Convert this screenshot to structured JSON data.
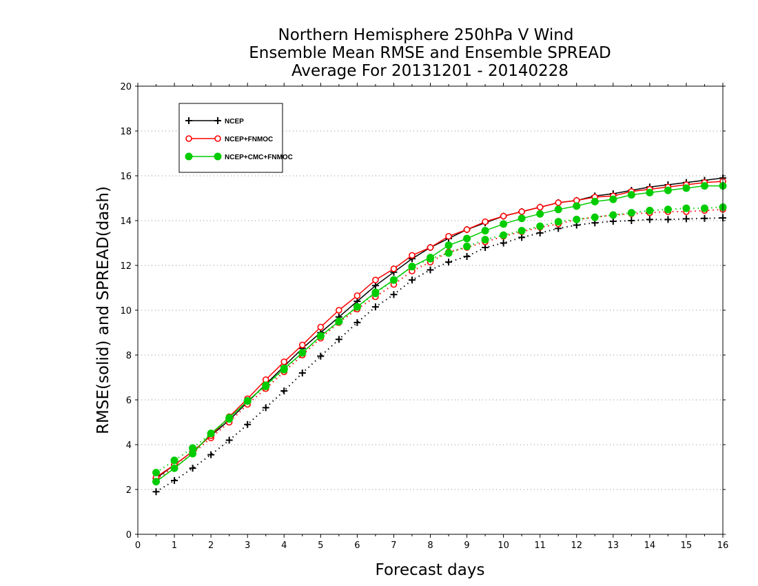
{
  "chart_data": {
    "type": "line",
    "title": [
      "Northern Hemisphere 250hPa V Wind",
      "Ensemble Mean RMSE and Ensemble SPREAD",
      "Average For 20131201 - 20140228"
    ],
    "xlabel": "Forecast days",
    "ylabel": "RMSE(solid) and SPREAD(dash)",
    "xlim": [
      0,
      16
    ],
    "ylim": [
      0,
      20
    ],
    "xticks": [
      "0",
      "1",
      "2",
      "3",
      "4",
      "5",
      "6",
      "7",
      "8",
      "9",
      "10",
      "11",
      "12",
      "13",
      "14",
      "15",
      "16"
    ],
    "yticks": [
      "0",
      "2",
      "4",
      "6",
      "8",
      "10",
      "12",
      "14",
      "16",
      "18",
      "20"
    ],
    "grid": true,
    "legend_position": "top-left",
    "x": [
      0.5,
      1,
      1.5,
      2,
      2.5,
      3,
      3.5,
      4,
      4.5,
      5,
      5.5,
      6,
      6.5,
      7,
      7.5,
      8,
      8.5,
      9,
      9.5,
      10,
      10.5,
      11,
      11.5,
      12,
      12.5,
      13,
      13.5,
      14,
      14.5,
      15,
      15.5,
      16
    ],
    "series": [
      {
        "name": "NCEP",
        "color": "#000000",
        "marker": "plus",
        "rmse": [
          2.5,
          3.1,
          3.7,
          4.4,
          5.1,
          5.9,
          6.7,
          7.5,
          8.3,
          9.0,
          9.7,
          10.4,
          11.1,
          11.7,
          12.3,
          12.8,
          13.2,
          13.6,
          13.9,
          14.2,
          14.4,
          14.6,
          14.8,
          14.9,
          15.1,
          15.2,
          15.35,
          15.5,
          15.6,
          15.7,
          15.8,
          15.9
        ],
        "spread": [
          1.9,
          2.4,
          2.95,
          3.55,
          4.2,
          4.9,
          5.65,
          6.4,
          7.2,
          7.95,
          8.7,
          9.45,
          10.15,
          10.7,
          11.35,
          11.8,
          12.15,
          12.4,
          12.8,
          13.0,
          13.25,
          13.45,
          13.65,
          13.8,
          13.9,
          13.97,
          14.0,
          14.05,
          14.05,
          14.08,
          14.1,
          14.12
        ]
      },
      {
        "name": "NCEP+FNMOC",
        "color": "#ff0000",
        "marker": "circle-open",
        "rmse": [
          2.55,
          3.1,
          3.7,
          4.4,
          5.25,
          6.05,
          6.9,
          7.7,
          8.45,
          9.25,
          10.0,
          10.65,
          11.35,
          11.85,
          12.45,
          12.8,
          13.3,
          13.6,
          13.95,
          14.2,
          14.4,
          14.6,
          14.8,
          14.9,
          15.05,
          15.1,
          15.3,
          15.4,
          15.5,
          15.6,
          15.7,
          15.75
        ],
        "spread": [
          2.45,
          3.0,
          3.6,
          4.3,
          5.0,
          5.8,
          6.5,
          7.25,
          8.0,
          8.75,
          9.45,
          10.05,
          10.6,
          11.15,
          11.75,
          12.15,
          12.6,
          12.8,
          13.05,
          13.3,
          13.5,
          13.7,
          13.85,
          14.05,
          14.15,
          14.25,
          14.3,
          14.35,
          14.4,
          14.4,
          14.45,
          14.5
        ]
      },
      {
        "name": "NCEP+CMC+FNMOC",
        "color": "#00cc00",
        "marker": "circle-filled",
        "rmse": [
          2.35,
          2.95,
          3.6,
          4.5,
          5.2,
          5.95,
          6.65,
          7.4,
          8.1,
          8.85,
          9.5,
          10.15,
          10.8,
          11.35,
          11.95,
          12.35,
          12.9,
          13.2,
          13.55,
          13.85,
          14.1,
          14.3,
          14.5,
          14.65,
          14.85,
          14.95,
          15.15,
          15.25,
          15.35,
          15.45,
          15.55,
          15.55
        ],
        "spread": [
          2.75,
          3.3,
          3.85,
          4.5,
          5.15,
          5.95,
          6.6,
          7.35,
          8.1,
          8.85,
          9.5,
          10.15,
          10.75,
          11.35,
          11.95,
          12.3,
          12.55,
          12.85,
          13.15,
          13.35,
          13.55,
          13.75,
          13.95,
          14.05,
          14.15,
          14.25,
          14.35,
          14.45,
          14.5,
          14.55,
          14.55,
          14.6
        ]
      }
    ]
  }
}
